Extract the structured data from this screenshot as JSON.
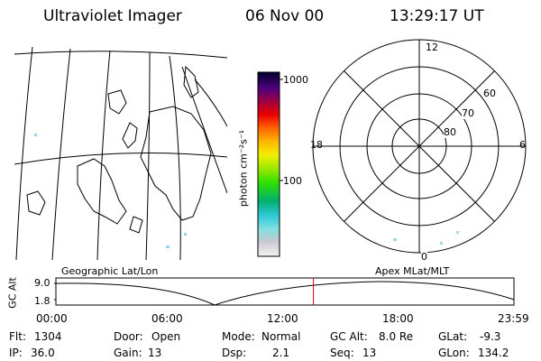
{
  "header": {
    "title": "Ultraviolet Imager",
    "date": "06 Nov 00",
    "time": "13:29:17 UT"
  },
  "colorbar": {
    "label": "photon cm⁻²s⁻¹",
    "ticks": [
      "1000",
      "100"
    ]
  },
  "polar_plot": {
    "mlt_labels": {
      "top": "12",
      "left": "18",
      "right": "6",
      "bottom": "0"
    },
    "lat_labels": [
      "60",
      "70",
      "80"
    ]
  },
  "timeline": {
    "left_caption": "Geographic Lat/Lon",
    "right_caption": "Apex MLat/MLT",
    "axis_label": "GC Alt",
    "y_ticks": [
      "9.0",
      "1.8"
    ],
    "x_ticks": [
      "00:00",
      "06:00",
      "12:00",
      "18:00",
      "23:59"
    ],
    "current_marker_time": "13:29",
    "marker_color": "#dd0000"
  },
  "footer": {
    "row1": [
      {
        "label": "Flt:",
        "value": "1304"
      },
      {
        "label": "Door:",
        "value": "Open"
      },
      {
        "label": "Mode:",
        "value": "Normal"
      },
      {
        "label": "GC Alt:",
        "value": "8.0 Re"
      },
      {
        "label": "GLat:",
        "value": "-9.3"
      }
    ],
    "row2": [
      {
        "label": "IP:",
        "value": "36.0"
      },
      {
        "label": "Gain:",
        "value": "13"
      },
      {
        "label": "Dsp:",
        "value": "2.1"
      },
      {
        "label": "Seq:",
        "value": "13"
      },
      {
        "label": "GLon:",
        "value": "134.2"
      }
    ]
  }
}
